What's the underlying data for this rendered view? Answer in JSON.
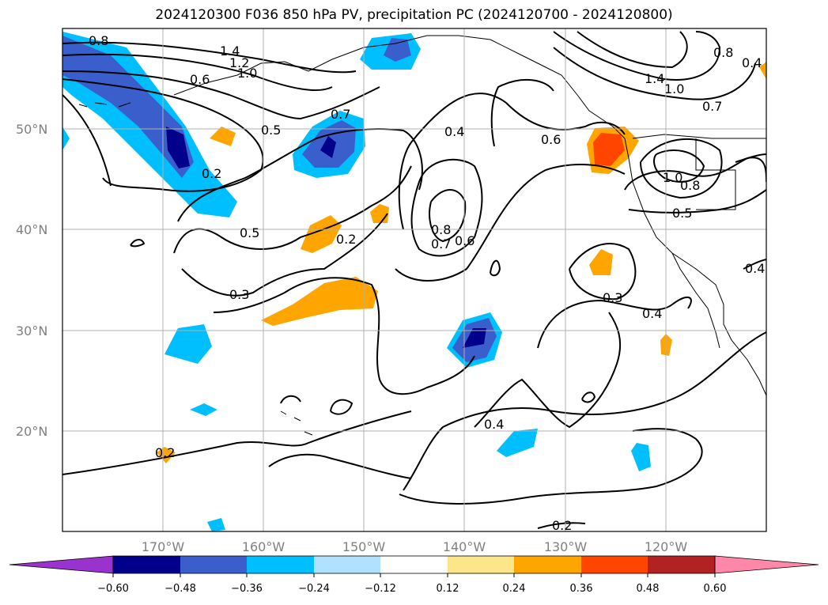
{
  "title": "2024120300 F036 850 hPa PV, precipitation PC (2024120700 - 2024120800)",
  "map": {
    "lon_range": [
      -180,
      -110
    ],
    "lat_range": [
      10,
      60
    ],
    "lat_labels": [
      "50°N",
      "40°N",
      "30°N",
      "20°N"
    ],
    "lon_labels": [
      "170°W",
      "160°W",
      "150°W",
      "140°W",
      "130°W",
      "120°W"
    ],
    "contour_labels": [
      "0.8",
      "1.4",
      "1.2",
      "1.0",
      "0.6",
      "0.7",
      "0.5",
      "0.2",
      "0.4",
      "0.6",
      "1.4",
      "1.0",
      "0.7",
      "0.8",
      "0.4",
      "1.0",
      "0.8",
      "0.5",
      "0.5",
      "0.2",
      "0.8",
      "0.7",
      "0.6",
      "0.3",
      "0.3",
      "0.4",
      "0.4",
      "0.4",
      "0.2",
      "0.2"
    ]
  },
  "colorbar": {
    "ticks": [
      "−0.60",
      "−0.48",
      "−0.36",
      "−0.24",
      "−0.12",
      "0.12",
      "0.24",
      "0.36",
      "0.48",
      "0.60"
    ],
    "colors": [
      "#9a32cd",
      "#00008b",
      "#3a5fcd",
      "#00bfff",
      "#b0e2ff",
      "#ffffff",
      "#fde68a",
      "#ffa500",
      "#ff4500",
      "#b22222",
      "#ff88aa"
    ]
  }
}
